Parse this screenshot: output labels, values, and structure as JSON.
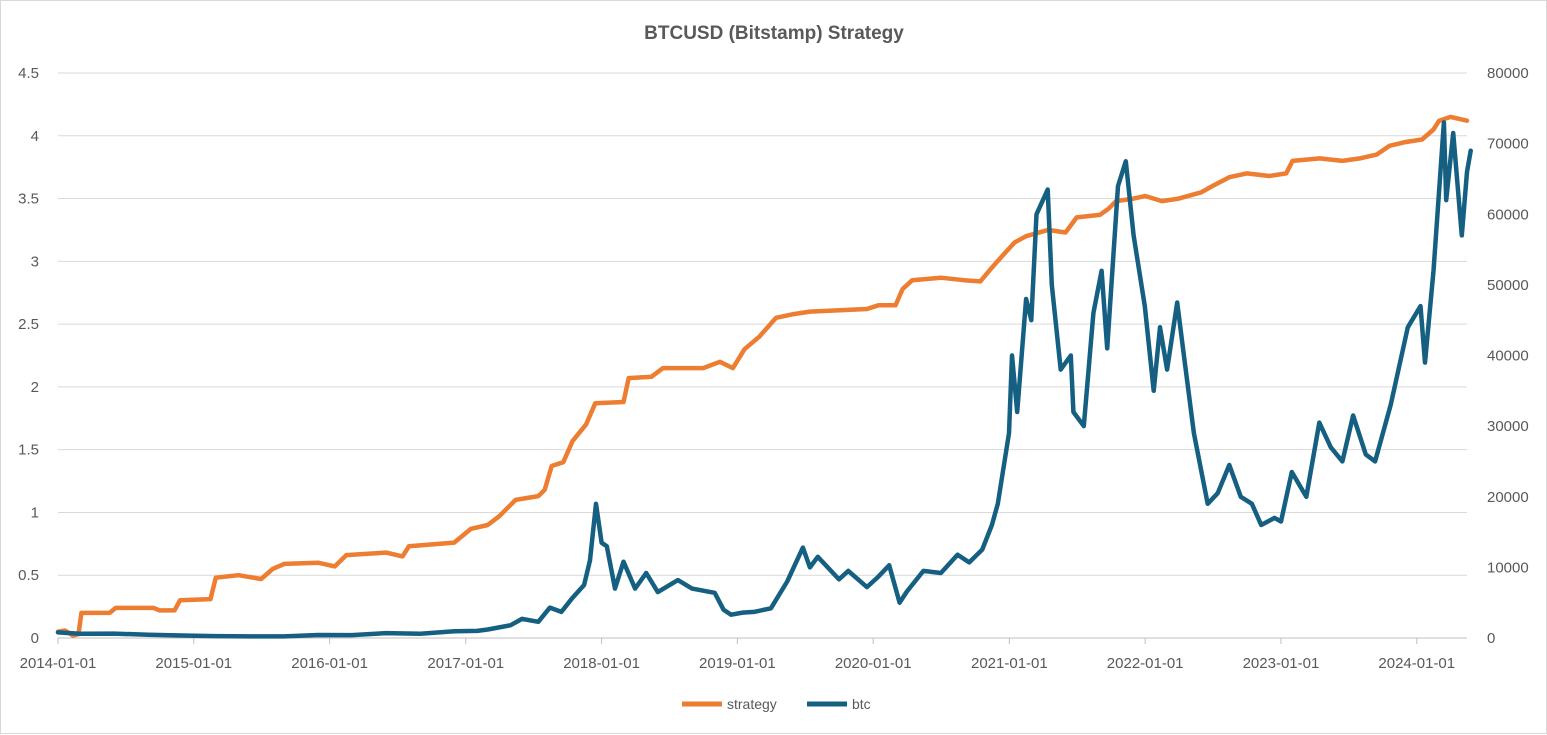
{
  "chart_data": {
    "type": "line",
    "title": "BTCUSD (Bitstamp) Strategy",
    "xlabel": "",
    "ylabel": "",
    "y2label": "",
    "x_ticks": [
      "2014-01-01",
      "2015-01-01",
      "2016-01-01",
      "2017-01-01",
      "2018-01-01",
      "2019-01-01",
      "2020-01-01",
      "2021-01-01",
      "2022-01-01",
      "2023-01-01",
      "2024-01-01"
    ],
    "y_left": {
      "min": 0,
      "max": 4.5,
      "ticks": [
        "0",
        "0.5",
        "1",
        "1.5",
        "2",
        "2.5",
        "3",
        "3.5",
        "4",
        "4.5"
      ]
    },
    "y_right": {
      "min": 0,
      "max": 80000,
      "ticks": [
        "0",
        "10000",
        "20000",
        "30000",
        "40000",
        "50000",
        "60000",
        "70000",
        "80000"
      ]
    },
    "x_range": [
      "2014-01-01",
      "2024-05-15"
    ],
    "grid": "horizontal",
    "legend_position": "bottom",
    "series": [
      {
        "name": "strategy",
        "axis": "left",
        "color": "#ED7D31",
        "points": [
          [
            "2014-01-01",
            0.05
          ],
          [
            "2014-01-20",
            0.06
          ],
          [
            "2014-02-10",
            0.02
          ],
          [
            "2014-02-25",
            0.03
          ],
          [
            "2014-03-05",
            0.2
          ],
          [
            "2014-05-20",
            0.2
          ],
          [
            "2014-06-05",
            0.24
          ],
          [
            "2014-09-15",
            0.24
          ],
          [
            "2014-10-01",
            0.22
          ],
          [
            "2014-11-10",
            0.22
          ],
          [
            "2014-11-25",
            0.3
          ],
          [
            "2015-02-15",
            0.31
          ],
          [
            "2015-03-01",
            0.48
          ],
          [
            "2015-05-01",
            0.5
          ],
          [
            "2015-07-01",
            0.47
          ],
          [
            "2015-08-01",
            0.55
          ],
          [
            "2015-09-01",
            0.59
          ],
          [
            "2015-12-01",
            0.6
          ],
          [
            "2016-01-15",
            0.57
          ],
          [
            "2016-02-15",
            0.66
          ],
          [
            "2016-06-01",
            0.68
          ],
          [
            "2016-07-15",
            0.65
          ],
          [
            "2016-08-01",
            0.73
          ],
          [
            "2016-12-01",
            0.76
          ],
          [
            "2017-01-15",
            0.87
          ],
          [
            "2017-03-01",
            0.9
          ],
          [
            "2017-04-01",
            0.97
          ],
          [
            "2017-05-15",
            1.1
          ],
          [
            "2017-07-15",
            1.13
          ],
          [
            "2017-08-01",
            1.18
          ],
          [
            "2017-08-20",
            1.37
          ],
          [
            "2017-09-20",
            1.4
          ],
          [
            "2017-10-15",
            1.57
          ],
          [
            "2017-11-20",
            1.7
          ],
          [
            "2017-12-15",
            1.87
          ],
          [
            "2018-03-01",
            1.88
          ],
          [
            "2018-03-15",
            2.07
          ],
          [
            "2018-05-15",
            2.08
          ],
          [
            "2018-06-15",
            2.15
          ],
          [
            "2018-10-01",
            2.15
          ],
          [
            "2018-11-15",
            2.2
          ],
          [
            "2018-12-20",
            2.15
          ],
          [
            "2019-01-20",
            2.3
          ],
          [
            "2019-03-01",
            2.4
          ],
          [
            "2019-04-15",
            2.55
          ],
          [
            "2019-06-01",
            2.58
          ],
          [
            "2019-07-15",
            2.6
          ],
          [
            "2019-12-15",
            2.62
          ],
          [
            "2020-01-15",
            2.65
          ],
          [
            "2020-03-01",
            2.65
          ],
          [
            "2020-03-20",
            2.78
          ],
          [
            "2020-04-15",
            2.85
          ],
          [
            "2020-07-01",
            2.87
          ],
          [
            "2020-09-01",
            2.85
          ],
          [
            "2020-10-15",
            2.84
          ],
          [
            "2020-11-15",
            2.95
          ],
          [
            "2020-12-15",
            3.05
          ],
          [
            "2021-01-15",
            3.15
          ],
          [
            "2021-02-15",
            3.2
          ],
          [
            "2021-04-15",
            3.25
          ],
          [
            "2021-06-01",
            3.23
          ],
          [
            "2021-07-01",
            3.35
          ],
          [
            "2021-09-01",
            3.37
          ],
          [
            "2021-09-25",
            3.42
          ],
          [
            "2021-10-15",
            3.48
          ],
          [
            "2021-12-01",
            3.5
          ],
          [
            "2022-01-01",
            3.52
          ],
          [
            "2022-02-15",
            3.48
          ],
          [
            "2022-04-01",
            3.5
          ],
          [
            "2022-06-01",
            3.55
          ],
          [
            "2022-07-01",
            3.6
          ],
          [
            "2022-08-15",
            3.67
          ],
          [
            "2022-10-01",
            3.7
          ],
          [
            "2022-12-01",
            3.68
          ],
          [
            "2023-01-15",
            3.7
          ],
          [
            "2023-02-01",
            3.8
          ],
          [
            "2023-04-15",
            3.82
          ],
          [
            "2023-06-15",
            3.8
          ],
          [
            "2023-08-01",
            3.82
          ],
          [
            "2023-09-15",
            3.85
          ],
          [
            "2023-10-20",
            3.92
          ],
          [
            "2023-12-01",
            3.95
          ],
          [
            "2024-01-15",
            3.97
          ],
          [
            "2024-02-15",
            4.05
          ],
          [
            "2024-03-01",
            4.12
          ],
          [
            "2024-04-01",
            4.15
          ],
          [
            "2024-05-15",
            4.12
          ]
        ]
      },
      {
        "name": "btc",
        "axis": "right",
        "color": "#156082",
        "points": [
          [
            "2014-01-01",
            800
          ],
          [
            "2014-03-01",
            600
          ],
          [
            "2014-06-01",
            620
          ],
          [
            "2014-09-01",
            450
          ],
          [
            "2014-12-01",
            350
          ],
          [
            "2015-03-01",
            270
          ],
          [
            "2015-06-01",
            230
          ],
          [
            "2015-09-01",
            230
          ],
          [
            "2015-12-01",
            430
          ],
          [
            "2016-03-01",
            415
          ],
          [
            "2016-06-01",
            700
          ],
          [
            "2016-09-01",
            610
          ],
          [
            "2016-12-01",
            960
          ],
          [
            "2017-02-01",
            1000
          ],
          [
            "2017-03-01",
            1200
          ],
          [
            "2017-05-01",
            1800
          ],
          [
            "2017-06-01",
            2700
          ],
          [
            "2017-07-15",
            2300
          ],
          [
            "2017-08-15",
            4300
          ],
          [
            "2017-09-15",
            3700
          ],
          [
            "2017-10-15",
            5700
          ],
          [
            "2017-11-15",
            7500
          ],
          [
            "2017-12-01",
            11000
          ],
          [
            "2017-12-17",
            19000
          ],
          [
            "2018-01-01",
            13500
          ],
          [
            "2018-01-15",
            13000
          ],
          [
            "2018-02-06",
            7000
          ],
          [
            "2018-03-01",
            10800
          ],
          [
            "2018-04-01",
            7000
          ],
          [
            "2018-05-01",
            9200
          ],
          [
            "2018-06-01",
            6500
          ],
          [
            "2018-07-25",
            8200
          ],
          [
            "2018-09-01",
            7000
          ],
          [
            "2018-11-01",
            6400
          ],
          [
            "2018-11-25",
            4000
          ],
          [
            "2018-12-15",
            3300
          ],
          [
            "2019-01-15",
            3600
          ],
          [
            "2019-02-15",
            3700
          ],
          [
            "2019-04-01",
            4200
          ],
          [
            "2019-05-15",
            8000
          ],
          [
            "2019-06-26",
            12800
          ],
          [
            "2019-07-15",
            10000
          ],
          [
            "2019-08-05",
            11500
          ],
          [
            "2019-09-01",
            10000
          ],
          [
            "2019-10-01",
            8300
          ],
          [
            "2019-10-26",
            9500
          ],
          [
            "2019-12-15",
            7200
          ],
          [
            "2020-01-15",
            8700
          ],
          [
            "2020-02-13",
            10300
          ],
          [
            "2020-03-12",
            5000
          ],
          [
            "2020-04-01",
            6600
          ],
          [
            "2020-05-15",
            9500
          ],
          [
            "2020-07-01",
            9200
          ],
          [
            "2020-08-15",
            11800
          ],
          [
            "2020-09-15",
            10700
          ],
          [
            "2020-10-20",
            12500
          ],
          [
            "2020-11-15",
            16000
          ],
          [
            "2020-12-01",
            19000
          ],
          [
            "2020-12-31",
            29000
          ],
          [
            "2021-01-08",
            40000
          ],
          [
            "2021-01-22",
            32000
          ],
          [
            "2021-02-15",
            48000
          ],
          [
            "2021-03-01",
            45000
          ],
          [
            "2021-03-15",
            60000
          ],
          [
            "2021-04-14",
            63500
          ],
          [
            "2021-04-25",
            50000
          ],
          [
            "2021-05-19",
            38000
          ],
          [
            "2021-06-15",
            40000
          ],
          [
            "2021-06-22",
            32000
          ],
          [
            "2021-07-20",
            30000
          ],
          [
            "2021-08-15",
            46000
          ],
          [
            "2021-09-06",
            52000
          ],
          [
            "2021-09-21",
            41000
          ],
          [
            "2021-10-20",
            64000
          ],
          [
            "2021-11-10",
            67500
          ],
          [
            "2021-12-01",
            57000
          ],
          [
            "2021-12-31",
            47000
          ],
          [
            "2022-01-24",
            35000
          ],
          [
            "2022-02-10",
            44000
          ],
          [
            "2022-03-01",
            38000
          ],
          [
            "2022-03-28",
            47500
          ],
          [
            "2022-04-15",
            40000
          ],
          [
            "2022-05-12",
            29000
          ],
          [
            "2022-06-18",
            19000
          ],
          [
            "2022-07-15",
            20500
          ],
          [
            "2022-08-15",
            24500
          ],
          [
            "2022-09-15",
            20000
          ],
          [
            "2022-10-15",
            19000
          ],
          [
            "2022-11-09",
            16000
          ],
          [
            "2022-12-15",
            17000
          ],
          [
            "2023-01-01",
            16500
          ],
          [
            "2023-01-30",
            23500
          ],
          [
            "2023-03-10",
            20000
          ],
          [
            "2023-04-14",
            30500
          ],
          [
            "2023-05-15",
            27000
          ],
          [
            "2023-06-15",
            25000
          ],
          [
            "2023-07-14",
            31500
          ],
          [
            "2023-08-17",
            26000
          ],
          [
            "2023-09-11",
            25000
          ],
          [
            "2023-10-23",
            33000
          ],
          [
            "2023-12-08",
            44000
          ],
          [
            "2024-01-11",
            47000
          ],
          [
            "2024-01-23",
            39000
          ],
          [
            "2024-02-15",
            52000
          ],
          [
            "2024-03-14",
            73000
          ],
          [
            "2024-03-20",
            62000
          ],
          [
            "2024-04-08",
            71500
          ],
          [
            "2024-05-01",
            57000
          ],
          [
            "2024-05-15",
            66000
          ],
          [
            "2024-05-25",
            69000
          ]
        ]
      }
    ]
  }
}
